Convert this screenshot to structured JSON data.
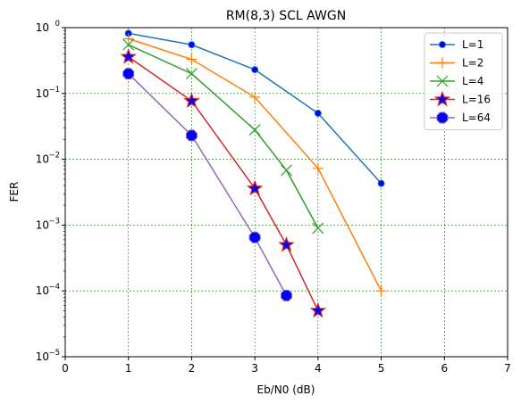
{
  "chart_data": {
    "type": "line",
    "title": "RM(8,3) SCL AWGN",
    "xlabel": "Eb/N0 (dB)",
    "ylabel": "FER",
    "xlim": [
      0,
      7
    ],
    "ylim": [
      1e-05,
      1
    ],
    "yscale": "log",
    "grid": true,
    "grid_color": "#008000",
    "legend_position": "top-right",
    "xticks": [
      "0",
      "1",
      "2",
      "3",
      "4",
      "5",
      "6",
      "7"
    ],
    "yticks": [
      {
        "base": "10",
        "exp": "0"
      },
      {
        "base": "10",
        "exp": "−1"
      },
      {
        "base": "10",
        "exp": "−2"
      },
      {
        "base": "10",
        "exp": "−3"
      },
      {
        "base": "10",
        "exp": "−4"
      },
      {
        "base": "10",
        "exp": "−5"
      }
    ],
    "series": [
      {
        "name": "L=1",
        "color": "#1f77b4",
        "marker": "circle",
        "marker_face": "#0000ff",
        "marker_edge": "#1f77b4",
        "x": [
          1,
          2,
          3,
          4,
          5
        ],
        "y": [
          0.82,
          0.55,
          0.23,
          0.05,
          0.0043
        ]
      },
      {
        "name": "L=2",
        "color": "#ff7f0e",
        "marker": "plus",
        "marker_face": "#ff7f0e",
        "marker_edge": "#ff7f0e",
        "x": [
          1,
          2,
          3,
          4,
          5
        ],
        "y": [
          0.68,
          0.33,
          0.088,
          0.0073,
          0.0001
        ]
      },
      {
        "name": "L=4",
        "color": "#2ca02c",
        "marker": "x",
        "marker_face": "#2ca02c",
        "marker_edge": "#2ca02c",
        "x": [
          1,
          2,
          3,
          3.5,
          4
        ],
        "y": [
          0.55,
          0.2,
          0.028,
          0.0068,
          0.0009
        ]
      },
      {
        "name": "L=16",
        "color": "#d62728",
        "marker": "star",
        "marker_face": "#0000ff",
        "marker_edge": "#d62728",
        "x": [
          1,
          2,
          3,
          3.5,
          4
        ],
        "y": [
          0.36,
          0.077,
          0.0036,
          0.0005,
          5e-05
        ]
      },
      {
        "name": "L=64",
        "color": "#9467bd",
        "marker": "octagon",
        "marker_face": "#0000ff",
        "marker_edge": "#9467bd",
        "x": [
          1,
          2,
          3,
          3.5
        ],
        "y": [
          0.2,
          0.023,
          0.00065,
          8.5e-05
        ]
      }
    ]
  }
}
